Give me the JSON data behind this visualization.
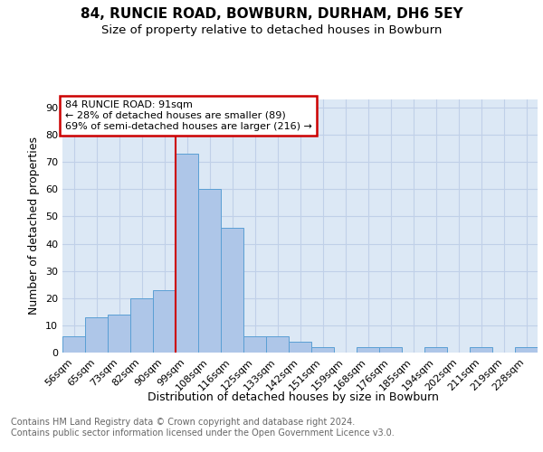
{
  "title1": "84, RUNCIE ROAD, BOWBURN, DURHAM, DH6 5EY",
  "title2": "Size of property relative to detached houses in Bowburn",
  "xlabel": "Distribution of detached houses by size in Bowburn",
  "ylabel": "Number of detached properties",
  "bar_labels": [
    "56sqm",
    "65sqm",
    "73sqm",
    "82sqm",
    "90sqm",
    "99sqm",
    "108sqm",
    "116sqm",
    "125sqm",
    "133sqm",
    "142sqm",
    "151sqm",
    "159sqm",
    "168sqm",
    "176sqm",
    "185sqm",
    "194sqm",
    "202sqm",
    "211sqm",
    "219sqm",
    "228sqm"
  ],
  "bar_values": [
    6,
    13,
    14,
    20,
    23,
    73,
    60,
    46,
    6,
    6,
    4,
    2,
    0,
    2,
    2,
    0,
    2,
    0,
    2,
    0,
    2
  ],
  "bar_color": "#aec6e8",
  "bar_edgecolor": "#5a9fd4",
  "vline_x": 4.5,
  "vline_color": "#cc0000",
  "annotation_text": "84 RUNCIE ROAD: 91sqm\n← 28% of detached houses are smaller (89)\n69% of semi-detached houses are larger (216) →",
  "annotation_boxcolor": "white",
  "annotation_edgecolor": "#cc0000",
  "yticks": [
    0,
    10,
    20,
    30,
    40,
    50,
    60,
    70,
    80,
    90
  ],
  "ylim": [
    0,
    93
  ],
  "grid_color": "#c0d0e8",
  "bg_color": "#dce8f5",
  "footer": "Contains HM Land Registry data © Crown copyright and database right 2024.\nContains public sector information licensed under the Open Government Licence v3.0.",
  "title1_fontsize": 11,
  "title2_fontsize": 9.5,
  "xlabel_fontsize": 9,
  "ylabel_fontsize": 9,
  "footer_fontsize": 7,
  "tick_fontsize": 8,
  "annotation_fontsize": 8
}
